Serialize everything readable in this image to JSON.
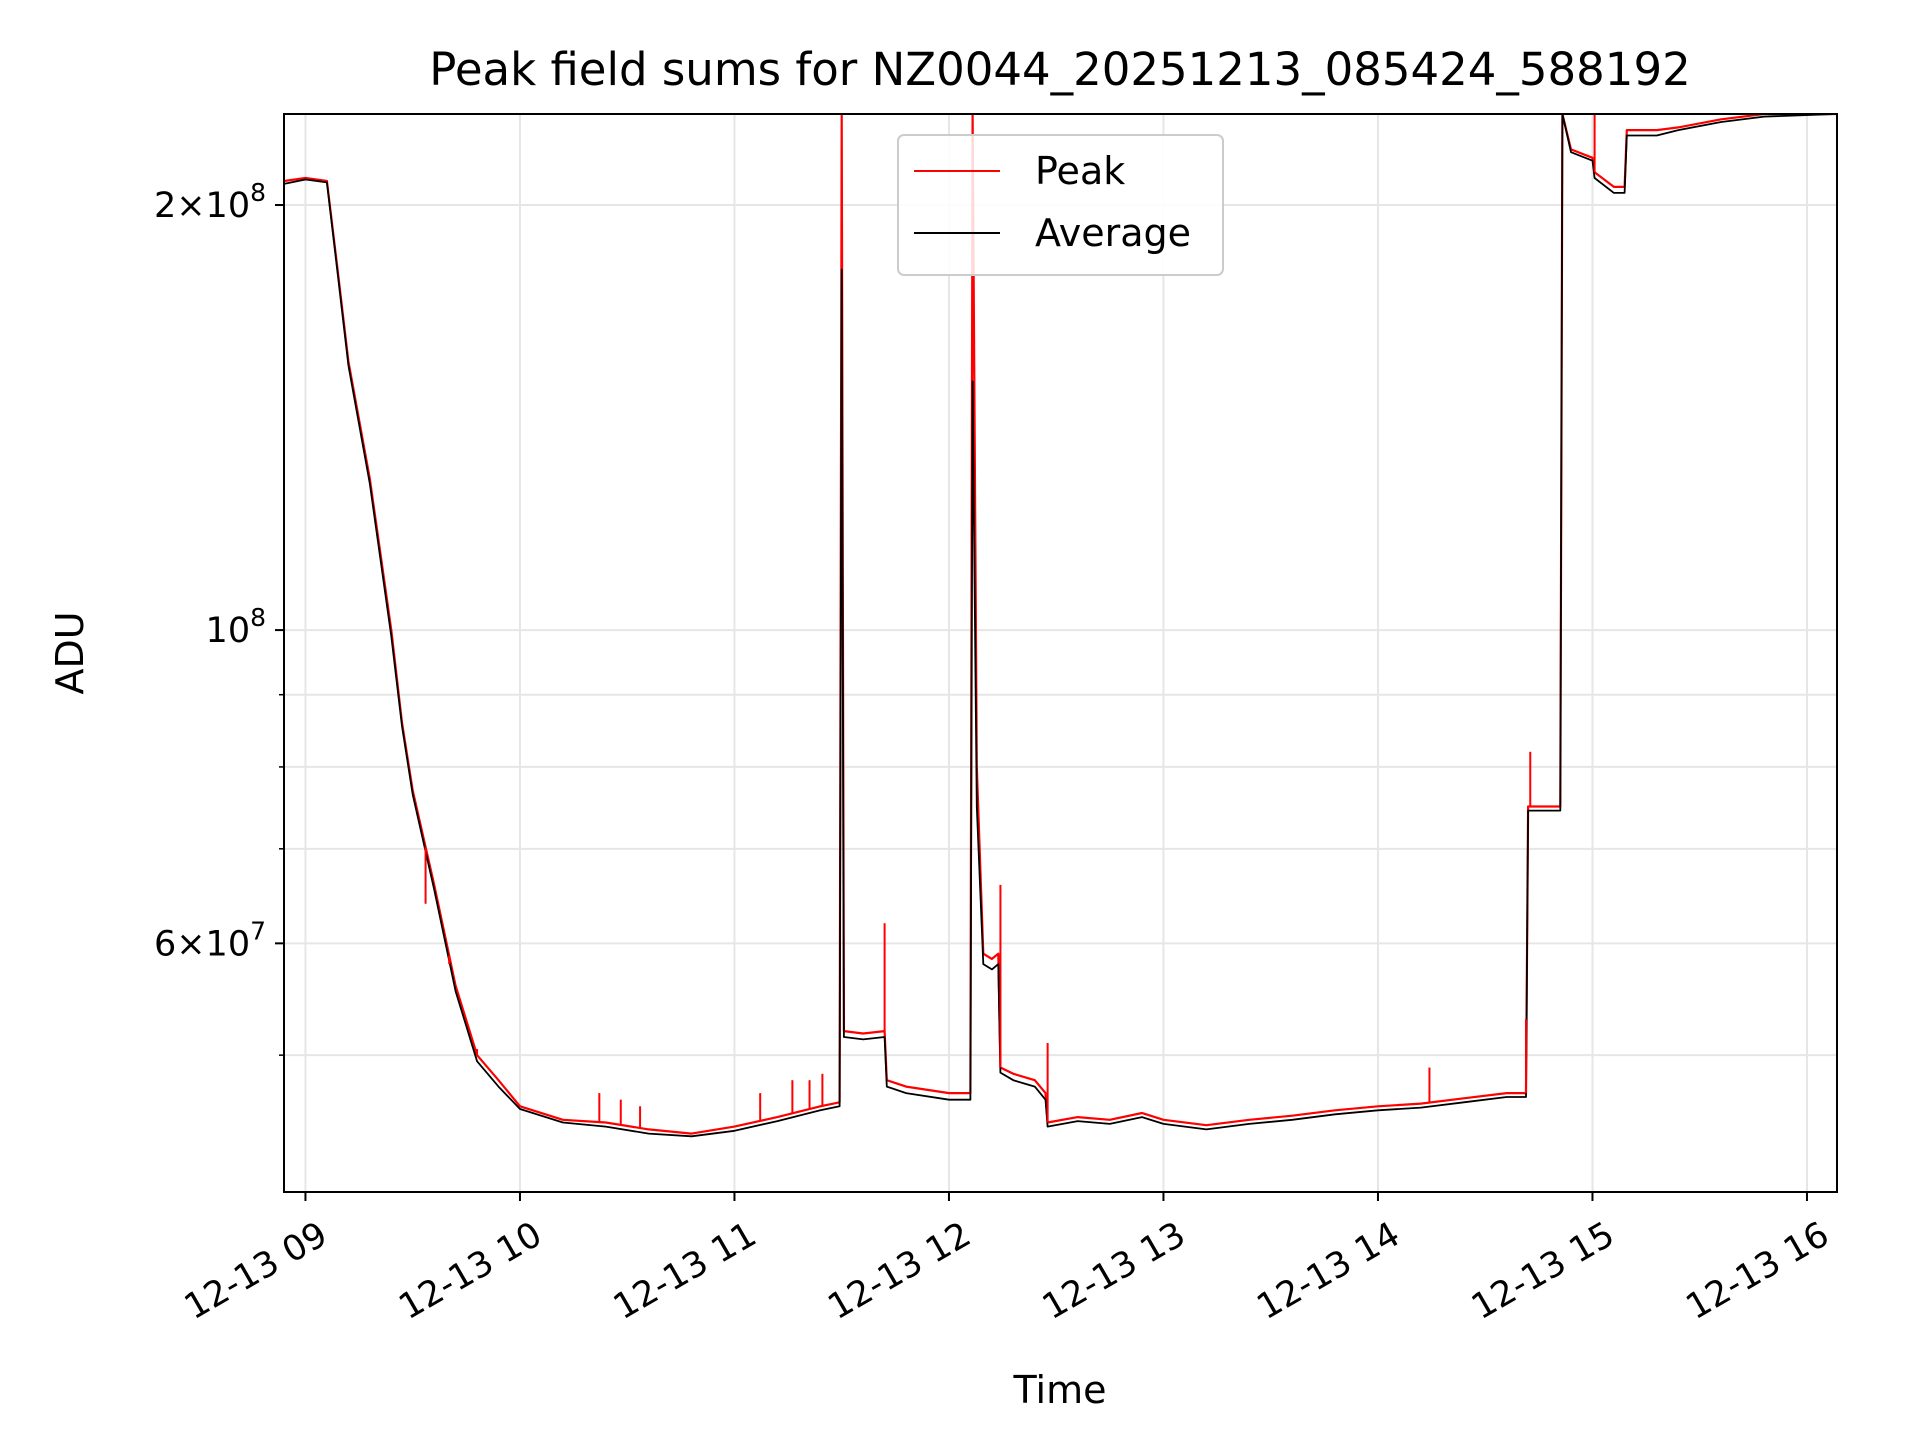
{
  "chart_data": {
    "type": "line",
    "title": "Peak field sums for NZ0044_20251213_085424_588192",
    "xlabel": "Time",
    "ylabel": "ADU",
    "yscale": "log",
    "grid": true,
    "legend_position": "upper center",
    "xlim_hours": [
      8.9,
      16.14
    ],
    "ylim": [
      40000000,
      232000000
    ],
    "x_ticks": [
      {
        "h": 9,
        "label": "12-13 09"
      },
      {
        "h": 10,
        "label": "12-13 10"
      },
      {
        "h": 11,
        "label": "12-13 11"
      },
      {
        "h": 12,
        "label": "12-13 12"
      },
      {
        "h": 13,
        "label": "12-13 13"
      },
      {
        "h": 14,
        "label": "12-13 14"
      },
      {
        "h": 15,
        "label": "12-13 15"
      },
      {
        "h": 16,
        "label": "12-13 16"
      }
    ],
    "y_ticks": [
      {
        "value": 60000000,
        "mant": "6",
        "exp": "7",
        "times": true
      },
      {
        "value": 100000000,
        "mant": "10",
        "exp": "8",
        "times": false
      },
      {
        "value": 200000000,
        "mant": "2",
        "exp": "8",
        "times": true
      }
    ],
    "y_minor": [
      50000000,
      70000000,
      80000000,
      90000000
    ],
    "series": [
      {
        "name": "Peak",
        "color": "#ff0000",
        "points": [
          [
            8.9,
            208000000
          ],
          [
            9.0,
            209000000
          ],
          [
            9.1,
            208000000
          ],
          [
            9.15,
            180000000
          ],
          [
            9.2,
            155000000
          ],
          [
            9.3,
            128000000
          ],
          [
            9.4,
            100000000
          ],
          [
            9.45,
            86000000
          ],
          [
            9.5,
            77000000
          ],
          [
            9.6,
            66000000
          ],
          [
            9.7,
            56000000
          ],
          [
            9.8,
            50000000
          ],
          [
            9.9,
            48000000
          ],
          [
            10.0,
            46000000
          ],
          [
            10.2,
            45000000
          ],
          [
            10.4,
            44800000
          ],
          [
            10.6,
            44300000
          ],
          [
            10.8,
            44000000
          ],
          [
            11.0,
            44500000
          ],
          [
            11.2,
            45200000
          ],
          [
            11.4,
            46000000
          ],
          [
            11.49,
            46300000
          ],
          [
            11.5,
            232000000
          ],
          [
            11.51,
            52000000
          ],
          [
            11.6,
            51800000
          ],
          [
            11.7,
            52000000
          ],
          [
            11.71,
            48000000
          ],
          [
            11.8,
            47500000
          ],
          [
            12.0,
            47000000
          ],
          [
            12.1,
            47000000
          ],
          [
            12.11,
            232000000
          ],
          [
            12.13,
            80000000
          ],
          [
            12.16,
            59000000
          ],
          [
            12.2,
            58500000
          ],
          [
            12.23,
            59000000
          ],
          [
            12.24,
            49000000
          ],
          [
            12.3,
            48500000
          ],
          [
            12.4,
            48000000
          ],
          [
            12.45,
            47000000
          ],
          [
            12.46,
            44800000
          ],
          [
            12.6,
            45200000
          ],
          [
            12.75,
            45000000
          ],
          [
            12.9,
            45500000
          ],
          [
            13.0,
            45000000
          ],
          [
            13.2,
            44600000
          ],
          [
            13.4,
            45000000
          ],
          [
            13.6,
            45300000
          ],
          [
            13.8,
            45700000
          ],
          [
            14.0,
            46000000
          ],
          [
            14.2,
            46200000
          ],
          [
            14.4,
            46600000
          ],
          [
            14.6,
            47000000
          ],
          [
            14.69,
            47000000
          ],
          [
            14.7,
            75000000
          ],
          [
            14.85,
            75000000
          ],
          [
            14.86,
            232000000
          ],
          [
            14.9,
            219000000
          ],
          [
            15.0,
            216000000
          ],
          [
            15.01,
            211000000
          ],
          [
            15.1,
            206000000
          ],
          [
            15.15,
            206000000
          ],
          [
            15.16,
            226000000
          ],
          [
            15.3,
            226000000
          ],
          [
            15.4,
            227000000
          ],
          [
            15.6,
            230000000
          ],
          [
            15.8,
            232000000
          ],
          [
            16.14,
            232000000
          ]
        ]
      },
      {
        "name": "Average",
        "color": "#000000",
        "points": [
          [
            8.9,
            207000000
          ],
          [
            9.0,
            208500000
          ],
          [
            9.1,
            207500000
          ],
          [
            9.15,
            179000000
          ],
          [
            9.2,
            154000000
          ],
          [
            9.3,
            127000000
          ],
          [
            9.4,
            99000000
          ],
          [
            9.45,
            85500000
          ],
          [
            9.5,
            76500000
          ],
          [
            9.6,
            65500000
          ],
          [
            9.7,
            55500000
          ],
          [
            9.8,
            49500000
          ],
          [
            9.9,
            47500000
          ],
          [
            10.0,
            45800000
          ],
          [
            10.2,
            44800000
          ],
          [
            10.4,
            44500000
          ],
          [
            10.6,
            44000000
          ],
          [
            10.8,
            43800000
          ],
          [
            11.0,
            44200000
          ],
          [
            11.2,
            44900000
          ],
          [
            11.4,
            45700000
          ],
          [
            11.49,
            46000000
          ],
          [
            11.5,
            180000000
          ],
          [
            11.51,
            51500000
          ],
          [
            11.6,
            51300000
          ],
          [
            11.7,
            51500000
          ],
          [
            11.71,
            47500000
          ],
          [
            11.8,
            47000000
          ],
          [
            12.0,
            46500000
          ],
          [
            12.1,
            46500000
          ],
          [
            12.11,
            150000000
          ],
          [
            12.13,
            75000000
          ],
          [
            12.16,
            58000000
          ],
          [
            12.2,
            57500000
          ],
          [
            12.23,
            58000000
          ],
          [
            12.24,
            48600000
          ],
          [
            12.3,
            48000000
          ],
          [
            12.4,
            47500000
          ],
          [
            12.45,
            46500000
          ],
          [
            12.46,
            44500000
          ],
          [
            12.6,
            44900000
          ],
          [
            12.75,
            44700000
          ],
          [
            12.9,
            45200000
          ],
          [
            13.0,
            44700000
          ],
          [
            13.2,
            44300000
          ],
          [
            13.4,
            44700000
          ],
          [
            13.6,
            45000000
          ],
          [
            13.8,
            45400000
          ],
          [
            14.0,
            45700000
          ],
          [
            14.2,
            45900000
          ],
          [
            14.4,
            46300000
          ],
          [
            14.6,
            46700000
          ],
          [
            14.69,
            46700000
          ],
          [
            14.7,
            74500000
          ],
          [
            14.85,
            74500000
          ],
          [
            14.86,
            232000000
          ],
          [
            14.9,
            218000000
          ],
          [
            15.0,
            215000000
          ],
          [
            15.01,
            209000000
          ],
          [
            15.1,
            204000000
          ],
          [
            15.15,
            204000000
          ],
          [
            15.16,
            224000000
          ],
          [
            15.3,
            224000000
          ],
          [
            15.4,
            226000000
          ],
          [
            15.6,
            229000000
          ],
          [
            15.8,
            231000000
          ],
          [
            16.14,
            232000000
          ]
        ]
      }
    ],
    "spikes": [
      {
        "h": 9.56,
        "value": 64000000
      },
      {
        "h": 9.67,
        "value": 58000000
      },
      {
        "h": 9.8,
        "value": 50500000
      },
      {
        "h": 10.37,
        "value": 47000000
      },
      {
        "h": 10.47,
        "value": 46500000
      },
      {
        "h": 10.56,
        "value": 46000000
      },
      {
        "h": 11.12,
        "value": 47000000
      },
      {
        "h": 11.27,
        "value": 48000000
      },
      {
        "h": 11.35,
        "value": 48000000
      },
      {
        "h": 11.41,
        "value": 48500000
      },
      {
        "h": 11.7,
        "value": 62000000
      },
      {
        "h": 12.24,
        "value": 66000000
      },
      {
        "h": 12.46,
        "value": 51000000
      },
      {
        "h": 14.24,
        "value": 49000000
      },
      {
        "h": 14.69,
        "value": 53000000
      },
      {
        "h": 14.71,
        "value": 82000000
      },
      {
        "h": 15.01,
        "value": 232000000
      }
    ]
  }
}
